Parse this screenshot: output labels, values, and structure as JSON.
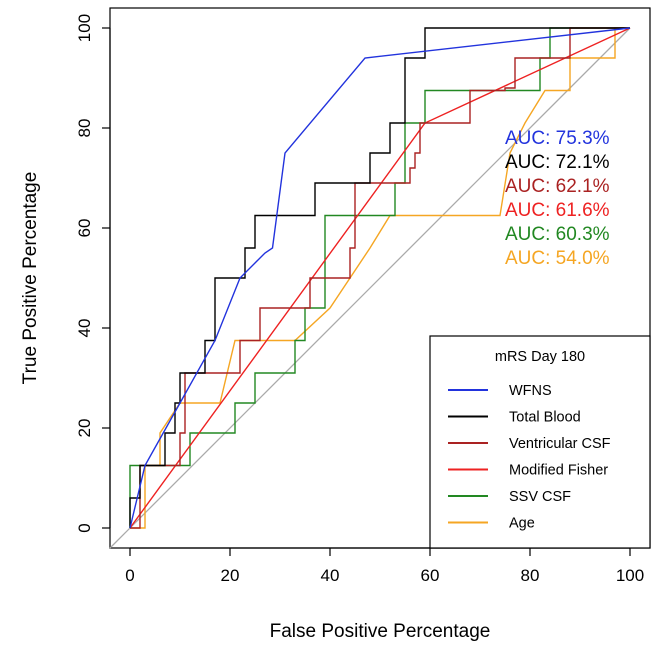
{
  "chart_data": {
    "type": "line",
    "title": "",
    "xlabel": "False Positive Percentage",
    "ylabel": "True Positive Percentage",
    "xlim": [
      0,
      100
    ],
    "ylim": [
      0,
      100
    ],
    "xticks": [
      "0",
      "20",
      "40",
      "60",
      "80",
      "100"
    ],
    "yticks": [
      "0",
      "20",
      "40",
      "60",
      "80",
      "100"
    ],
    "reference_line": {
      "x": [
        0,
        100
      ],
      "y": [
        0,
        100
      ],
      "color": "#aaaaaa"
    },
    "legend": {
      "title": "mRS Day 180",
      "position": "bottom-right"
    },
    "series": [
      {
        "name": "WFNS",
        "color": "#2233dd",
        "auc_label": "AUC: 75.3%",
        "x": [
          0,
          3,
          10,
          17,
          22,
          27,
          28.5,
          31,
          47,
          100
        ],
        "y": [
          0,
          12.5,
          25,
          37.5,
          50,
          55,
          56,
          75,
          94,
          100
        ]
      },
      {
        "name": "Total Blood",
        "color": "#000000",
        "auc_label": "AUC: 72.1%",
        "x": [
          0,
          0,
          2,
          2,
          7,
          7,
          9,
          9,
          10,
          10,
          15,
          15,
          17,
          17,
          23,
          23,
          25,
          25,
          37,
          37,
          48,
          48,
          52,
          52,
          55,
          55,
          59,
          59,
          100
        ],
        "y": [
          0,
          6,
          6,
          12.5,
          12.5,
          19,
          19,
          25,
          25,
          31,
          31,
          37.5,
          37.5,
          50,
          50,
          56,
          56,
          62.5,
          62.5,
          69,
          69,
          75,
          75,
          81,
          81,
          94,
          94,
          100,
          100
        ]
      },
      {
        "name": "Ventricular CSF",
        "color": "#aa2222",
        "auc_label": "AUC: 62.1%",
        "x": [
          0,
          2,
          2,
          10,
          10,
          11,
          11,
          22,
          22,
          26,
          26,
          36,
          36,
          44,
          44,
          45,
          45,
          56,
          56,
          57,
          57,
          58,
          58,
          68,
          68,
          75,
          75,
          77,
          77,
          83,
          83,
          88,
          88,
          100
        ],
        "y": [
          0,
          0,
          12.5,
          12.5,
          19,
          19,
          31,
          31,
          37.5,
          37.5,
          44,
          44,
          50,
          50,
          56,
          56,
          69,
          69,
          72,
          72,
          75,
          75,
          81,
          81,
          87.5,
          87.5,
          88,
          88,
          94,
          94,
          94,
          94,
          100,
          100
        ]
      },
      {
        "name": "Modified Fisher",
        "color": "#ee2222",
        "auc_label": "AUC: 61.6%",
        "x": [
          0,
          59,
          100
        ],
        "y": [
          0,
          81,
          100
        ]
      },
      {
        "name": "SSV CSF",
        "color": "#228822",
        "auc_label": "AUC: 60.3%",
        "x": [
          0,
          0,
          7,
          7,
          12,
          12,
          21,
          21,
          25,
          25,
          30,
          30,
          33,
          33,
          35,
          35,
          39,
          39,
          45,
          45,
          53,
          53,
          55,
          55,
          59,
          59,
          82,
          82,
          84,
          84,
          100
        ],
        "y": [
          0,
          12.5,
          12.5,
          12.5,
          12.5,
          19,
          19,
          25,
          25,
          31,
          31,
          31,
          31,
          37.5,
          37.5,
          44,
          44,
          62.5,
          62.5,
          62.5,
          62.5,
          69,
          69,
          81,
          81,
          87.5,
          87.5,
          94,
          94,
          100,
          100
        ]
      },
      {
        "name": "Age",
        "color": "#f5a623",
        "auc_label": "AUC: 54.0%",
        "x": [
          0,
          3,
          3,
          6,
          6,
          10,
          18,
          21,
          33,
          40,
          48,
          52,
          74,
          76,
          79,
          79,
          83,
          88,
          88,
          97,
          97,
          100
        ],
        "y": [
          0,
          0,
          12.5,
          12.5,
          19,
          25,
          25,
          37.5,
          37.5,
          44,
          56,
          62.5,
          62.5,
          75,
          81,
          81,
          87.5,
          87.5,
          94,
          94,
          100,
          100
        ]
      }
    ]
  }
}
